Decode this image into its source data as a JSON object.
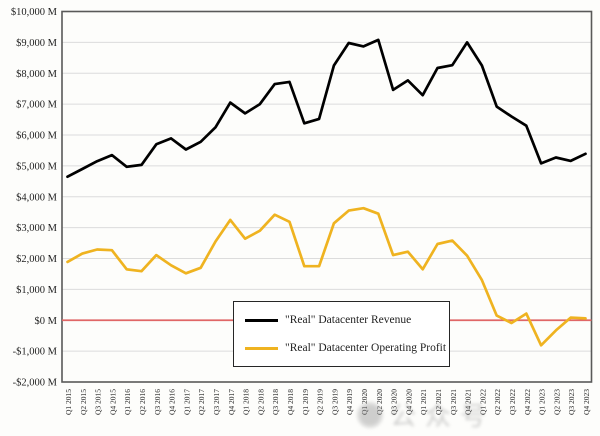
{
  "figure": {
    "watermark": {
      "text": "公众号",
      "color": "#8e8e8e"
    }
  },
  "chart_data": {
    "type": "line",
    "title": "",
    "xlabel": "",
    "ylabel": "",
    "ylim": [
      -2000,
      10000
    ],
    "grid": true,
    "legend_position": "inside-bottom-center",
    "background": "#ffffff",
    "gridline_color": "#dcdcdc",
    "border_color": "#595959",
    "zero_line_color": "#e06666",
    "categories": [
      "Q1 2015",
      "Q2 2015",
      "Q3 2015",
      "Q4 2015",
      "Q1 2016",
      "Q2 2016",
      "Q3 2016",
      "Q4 2016",
      "Q1 2017",
      "Q2 2017",
      "Q3 2017",
      "Q4 2017",
      "Q1 2018",
      "Q2 2018",
      "Q3 2018",
      "Q4 2018",
      "Q1 2019",
      "Q2 2019",
      "Q3 2019",
      "Q4 2019",
      "Q1 2020",
      "Q2 2020",
      "Q3 2020",
      "Q4 2020",
      "Q1 2021",
      "Q2 2021",
      "Q3 2021",
      "Q4 2021",
      "Q1 2022",
      "Q2 2022",
      "Q3 2022",
      "Q4 2022",
      "Q1 2023",
      "Q2 2023",
      "Q3 2023",
      "Q4 2023"
    ],
    "series": [
      {
        "name": "\"Real\" Datacenter Revenue",
        "color": "#000000",
        "values": [
          4650,
          4900,
          5150,
          5350,
          4970,
          5030,
          5700,
          5890,
          5530,
          5780,
          6250,
          7050,
          6700,
          7000,
          7650,
          7720,
          6380,
          6520,
          8250,
          8980,
          8870,
          9080,
          7460,
          7770,
          7290,
          8170,
          8260,
          9000,
          8250,
          6920,
          6600,
          6300,
          5080,
          5270,
          5160,
          5390
        ]
      },
      {
        "name": "\"Real\" Datacenter Operating Profit",
        "color": "#efb320",
        "values": [
          1890,
          2160,
          2290,
          2270,
          1650,
          1590,
          2110,
          1780,
          1520,
          1700,
          2550,
          3250,
          2640,
          2900,
          3420,
          3190,
          1750,
          1750,
          3140,
          3550,
          3630,
          3450,
          2110,
          2220,
          1650,
          2470,
          2580,
          2090,
          1300,
          150,
          -90,
          215,
          -810,
          -330,
          85,
          60
        ]
      }
    ],
    "y_ticks": [
      {
        "label": "$10,000 M",
        "value": 10000
      },
      {
        "label": "$9,000 M",
        "value": 9000
      },
      {
        "label": "$8,000 M",
        "value": 8000
      },
      {
        "label": "$7,000 M",
        "value": 7000
      },
      {
        "label": "$6,000 M",
        "value": 6000
      },
      {
        "label": "$5,000 M",
        "value": 5000
      },
      {
        "label": "$4,000 M",
        "value": 4000
      },
      {
        "label": "$3,000 M",
        "value": 3000
      },
      {
        "label": "$2,000 M",
        "value": 2000
      },
      {
        "label": "$1,000 M",
        "value": 1000
      },
      {
        "label": "$0 M",
        "value": 0
      },
      {
        "label": "-$1,000 M",
        "value": -1000
      },
      {
        "label": "-$2,000 M",
        "value": -2000
      }
    ]
  }
}
